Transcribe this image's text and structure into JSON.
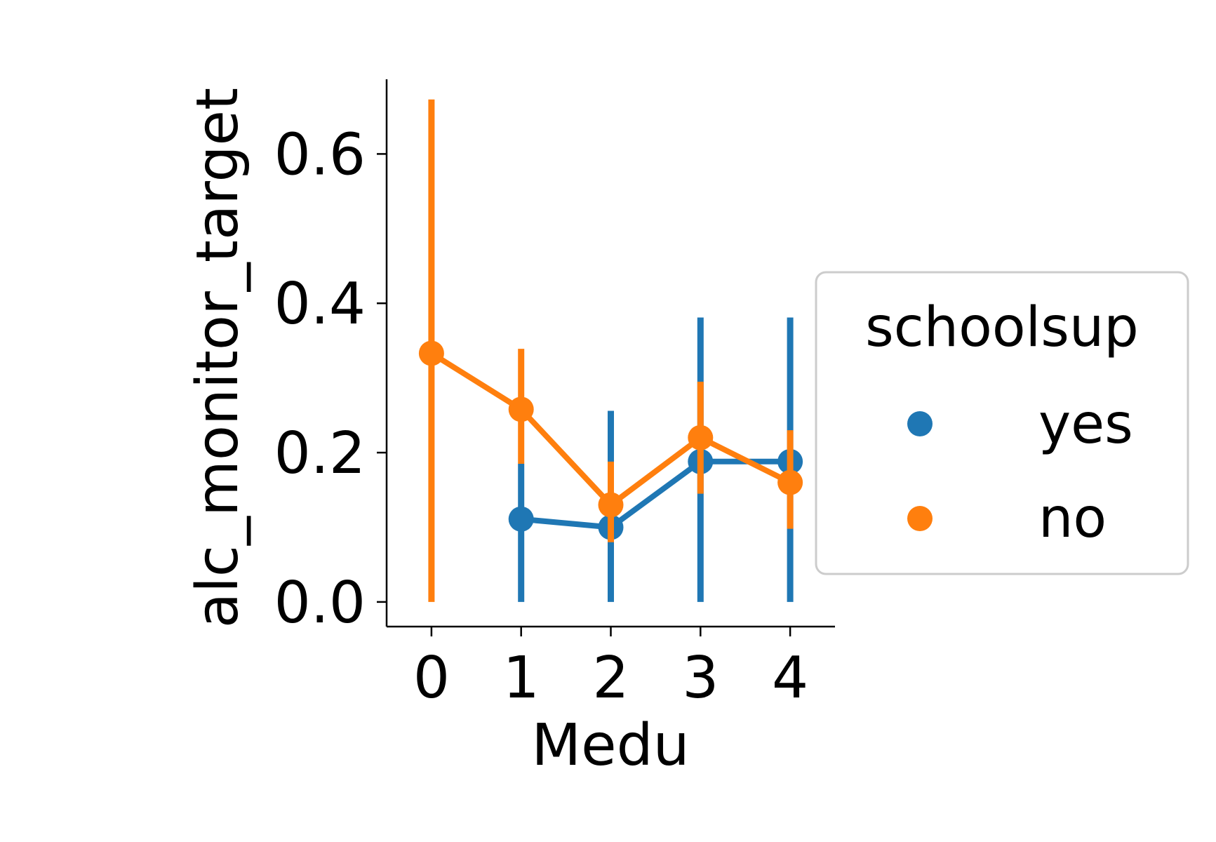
{
  "chart_data": {
    "type": "line",
    "xlabel": "Medu",
    "ylabel": "alc_monitor_target",
    "x": [
      0,
      1,
      2,
      3,
      4
    ],
    "x_tick_labels": [
      "0",
      "1",
      "2",
      "3",
      "4"
    ],
    "y_ticks": [
      0.0,
      0.2,
      0.4,
      0.6
    ],
    "y_tick_labels": [
      "0.0",
      "0.2",
      "0.4",
      "0.6"
    ],
    "ylim": [
      -0.033,
      0.7
    ],
    "xlim": [
      -0.5,
      4.5
    ],
    "grid": false,
    "legend": {
      "title": "schoolsup",
      "placement": "center-right outside"
    },
    "series": [
      {
        "name": "yes",
        "color": "#1f77b4",
        "points": [
          {
            "x": 1,
            "y": 0.111,
            "err_low": 0.0,
            "err_high": 0.185
          },
          {
            "x": 2,
            "y": 0.1,
            "err_low": 0.0,
            "err_high": 0.256
          },
          {
            "x": 3,
            "y": 0.188,
            "err_low": 0.0,
            "err_high": 0.381
          },
          {
            "x": 4,
            "y": 0.188,
            "err_low": 0.0,
            "err_high": 0.381
          }
        ]
      },
      {
        "name": "no",
        "color": "#ff7f0e",
        "points": [
          {
            "x": 0,
            "y": 0.333,
            "err_low": 0.0,
            "err_high": 0.673
          },
          {
            "x": 1,
            "y": 0.258,
            "err_low": 0.185,
            "err_high": 0.339
          },
          {
            "x": 2,
            "y": 0.13,
            "err_low": 0.08,
            "err_high": 0.188
          },
          {
            "x": 3,
            "y": 0.22,
            "err_low": 0.145,
            "err_high": 0.295
          },
          {
            "x": 4,
            "y": 0.16,
            "err_low": 0.098,
            "err_high": 0.23
          }
        ]
      }
    ]
  }
}
